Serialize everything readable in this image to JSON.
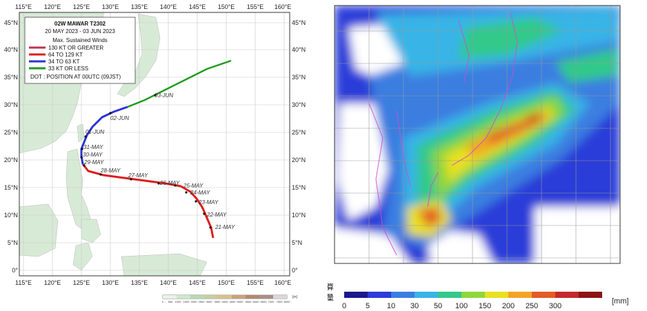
{
  "track_map": {
    "legend": {
      "title": "02W  MAWAR  T2302",
      "dates": "20 MAY 2023 - 03 JUN 2023",
      "subtitle": "Max. Sustained Winds",
      "items": [
        {
          "label": "130 KT OR GREATER",
          "color": "#c0304a"
        },
        {
          "label": "64 TO 129 KT",
          "color": "#dd1c1c"
        },
        {
          "label": "34 TO 63 KT",
          "color": "#2a32d8"
        },
        {
          "label": "33 KT OR LESS",
          "color": "#1e9a1e"
        }
      ],
      "dot_note": "DOT : POSITION AT 00UTC (09JST)"
    },
    "lon_labels": [
      "115°E",
      "120°E",
      "125°E",
      "130°E",
      "135°E",
      "140°E",
      "145°E",
      "150°E",
      "155°E",
      "160°E"
    ],
    "lat_labels": [
      "45°N",
      "40°N",
      "35°N",
      "30°N",
      "25°N",
      "20°N",
      "15°N",
      "10°N",
      "5°N",
      "0°"
    ],
    "date_labels": [
      "21-MAY",
      "22-MAY",
      "23-MAY",
      "24-MAY",
      "25-MAY",
      "26-MAY",
      "27-MAY",
      "28-MAY",
      "29-MAY",
      "30-MAY",
      "31-MAY",
      "01-JUN",
      "02-JUN",
      "03-JUN"
    ],
    "scale_ticks": [
      "0",
      "500",
      "1000",
      "1500",
      "2000",
      "2500",
      "3000",
      "3500",
      "4000",
      "4500",
      "5000",
      "5500",
      "6000",
      "6500",
      "7000",
      "7500",
      "8000"
    ],
    "scale_unit": "[m]"
  },
  "rain_map": {
    "colorbar": {
      "title_line1": "積算",
      "title_line2": "雨量",
      "ticks": [
        "0",
        "5",
        "10",
        "30",
        "50",
        "100",
        "150",
        "200",
        "250",
        "300"
      ],
      "unit": "[mm]",
      "colors": [
        "#1a1a8c",
        "#2c3cd8",
        "#3a7ee0",
        "#38b4e6",
        "#33c98a",
        "#8fd63a",
        "#e8e020",
        "#f2a426",
        "#e25c28",
        "#c42a2a",
        "#8c1414"
      ]
    }
  }
}
